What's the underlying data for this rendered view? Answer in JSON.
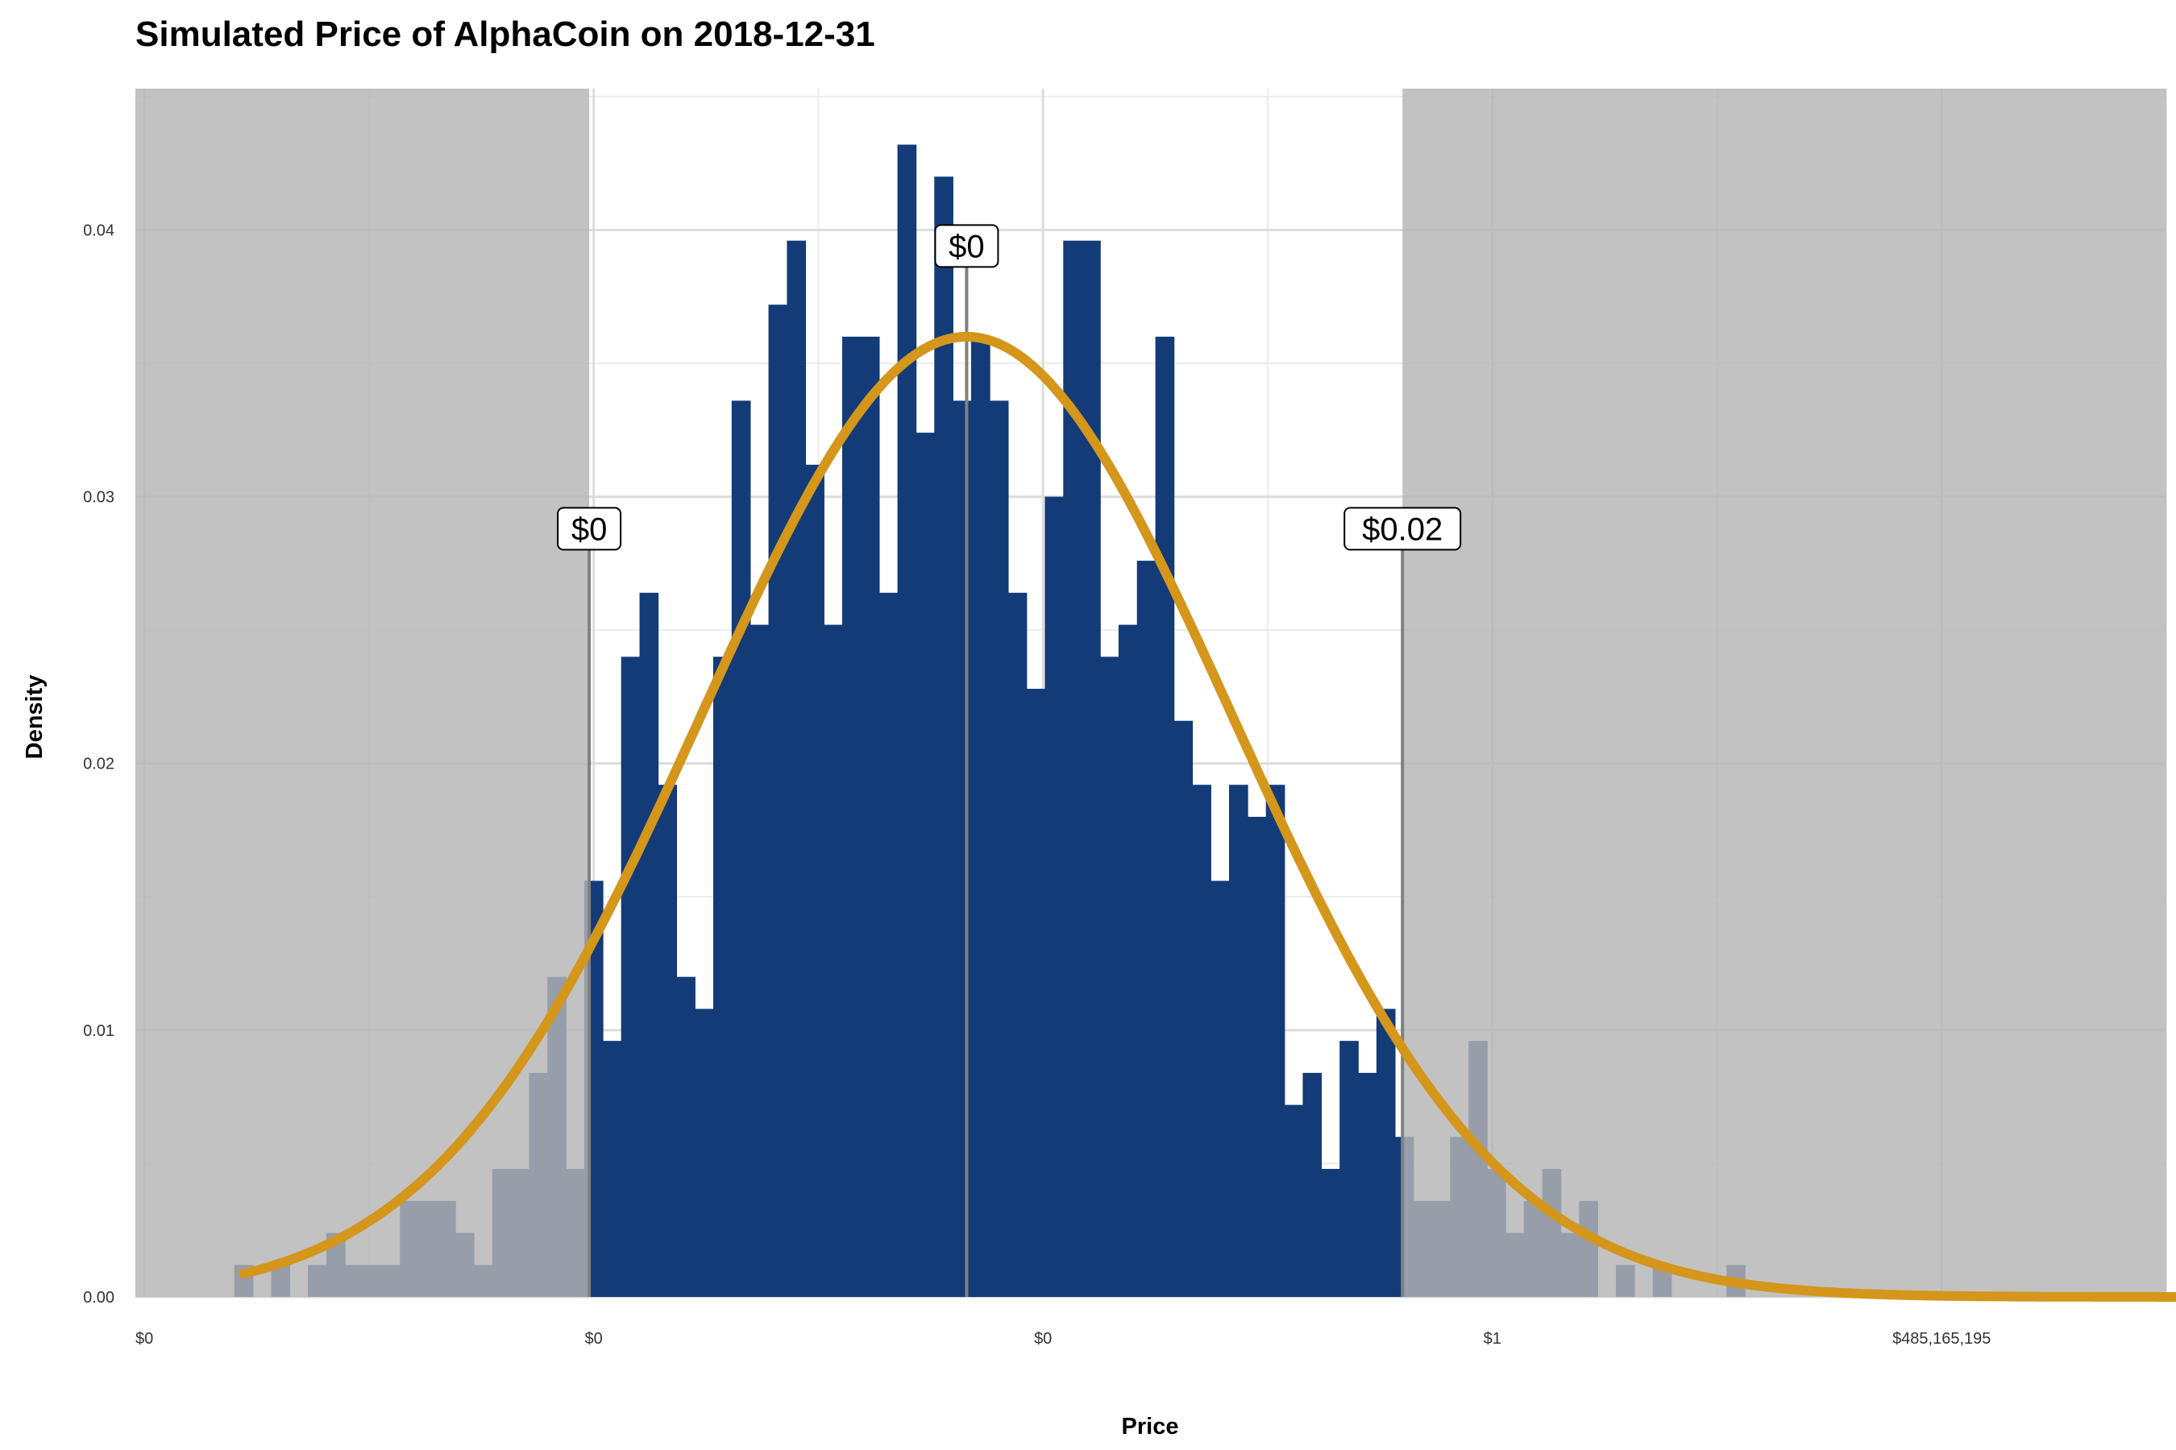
{
  "chart_data": {
    "type": "bar",
    "title": "Simulated Price of AlphaCoin on 2018-12-31",
    "xlabel": "Price",
    "ylabel": "Density",
    "ylim": [
      0,
      0.0453
    ],
    "y_ticks": [
      "0.00",
      "0.01",
      "0.02",
      "0.03",
      "0.04"
    ],
    "y_tick_values": [
      0,
      0.01,
      0.02,
      0.03,
      0.04
    ],
    "x_ticks": [
      "$0",
      "$0",
      "$0",
      "$1",
      "$485,165,195"
    ],
    "x_tick_positions": [
      0,
      1,
      2,
      3,
      4
    ],
    "xlim": [
      -0.02,
      4.5
    ],
    "grid": true,
    "bar_start": 0.2,
    "bar_width": 0.041,
    "values": [
      0.0012,
      0.0,
      0.0012,
      0.0,
      0.0012,
      0.0024,
      0.0012,
      0.0012,
      0.0012,
      0.0036,
      0.0036,
      0.0036,
      0.0024,
      0.0012,
      0.0048,
      0.0048,
      0.0084,
      0.012,
      0.0048,
      0.0156,
      0.0096,
      0.024,
      0.0264,
      0.0192,
      0.012,
      0.0108,
      0.024,
      0.0336,
      0.0252,
      0.0372,
      0.0396,
      0.0312,
      0.0252,
      0.036,
      0.036,
      0.0264,
      0.0432,
      0.0324,
      0.042,
      0.0336,
      0.036,
      0.0336,
      0.0264,
      0.0228,
      0.03,
      0.0396,
      0.0396,
      0.024,
      0.0252,
      0.0276,
      0.036,
      0.0216,
      0.0192,
      0.0156,
      0.0192,
      0.018,
      0.0192,
      0.0072,
      0.0084,
      0.0048,
      0.0096,
      0.0084,
      0.0108,
      0.006,
      0.0036,
      0.0036,
      0.006,
      0.0096,
      0.0048,
      0.0024,
      0.0036,
      0.0048,
      0.0024,
      0.0036,
      0.0,
      0.0012,
      0.0,
      0.0012,
      0.0,
      0.0,
      0.0,
      0.0012,
      0.0,
      0.0,
      0.0,
      0.0,
      0.0,
      0.0,
      0.0,
      0.0,
      0.0,
      0.0,
      0.0,
      0.0,
      0.0,
      0.0,
      0.0,
      0.0,
      0.0,
      0.0,
      0.0,
      0.0,
      0.0,
      0.0,
      0.0,
      0.0,
      0.0,
      0.0,
      0.0012
    ],
    "bar_color": "#133b77",
    "density_curve": {
      "mean": 1.83,
      "sd": 0.59,
      "color": "#d4961b"
    },
    "shaded_regions": [
      {
        "from": -0.02,
        "to": 0.99,
        "color": "#b4b4b4"
      },
      {
        "from": 2.8,
        "to": 4.5,
        "color": "#b4b4b4"
      }
    ],
    "reference_lines": [
      {
        "x": 0.99,
        "label": "$0",
        "label_y": 0.0288
      },
      {
        "x": 1.83,
        "label": "$0",
        "label_y": 0.0394
      },
      {
        "x": 2.8,
        "label": "$0.02",
        "label_y": 0.0288
      }
    ]
  }
}
